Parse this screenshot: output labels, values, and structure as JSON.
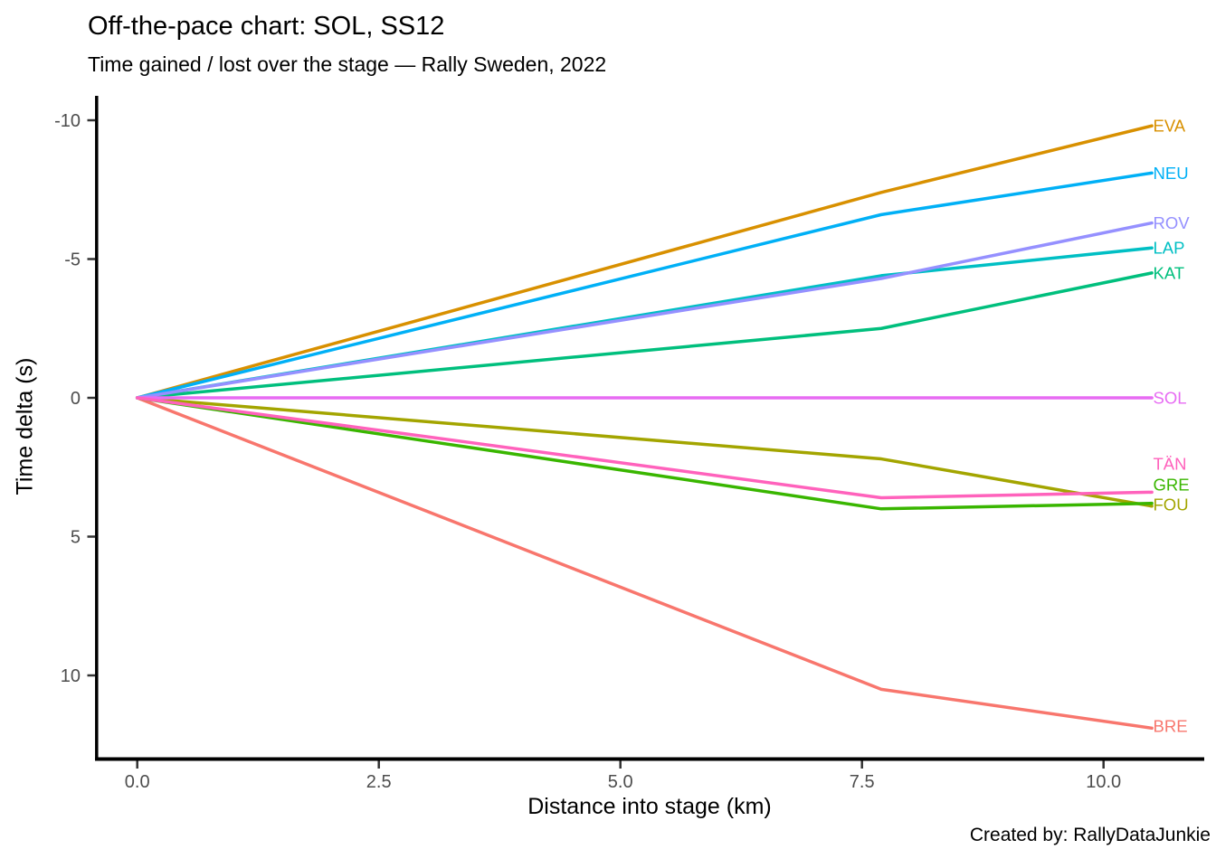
{
  "title": "Off-the-pace chart: SOL, SS12",
  "subtitle": "Time gained / lost over the stage — Rally Sweden, 2022",
  "caption": "Created by: RallyDataJunkie",
  "chart_data": {
    "type": "line",
    "title": "Off-the-pace chart: SOL, SS12",
    "subtitle": "Time gained / lost over the stage — Rally Sweden, 2022",
    "xlabel": "Distance into stage (km)",
    "ylabel": "Time delta (s)",
    "x": [
      0,
      7.7,
      10.5
    ],
    "xlim": [
      -0.53,
      11.03
    ],
    "ylim_top_to_bottom": [
      -10.9,
      13.0
    ],
    "y_axis_reversed": true,
    "grid": false,
    "legend": "direct-labels-right",
    "x_ticks": [
      0,
      2.5,
      5,
      7.5,
      10
    ],
    "x_tick_labels": [
      "0.0",
      "2.5",
      "5.0",
      "7.5",
      "10.0"
    ],
    "y_ticks": [
      -10,
      -5,
      0,
      5,
      10
    ],
    "y_tick_labels": [
      "-10",
      "-5",
      "0",
      "5",
      "10"
    ],
    "series": [
      {
        "name": "BRE",
        "color": "#F8766D",
        "values": [
          0,
          10.5,
          11.9
        ],
        "label_pos": 11.82
      },
      {
        "name": "EVA",
        "color": "#D89000",
        "values": [
          0,
          -7.4,
          -9.8
        ],
        "label_pos": -9.8
      },
      {
        "name": "FOU",
        "color": "#A3A500",
        "values": [
          0,
          2.2,
          3.9
        ],
        "label_pos": 3.85
      },
      {
        "name": "GRE",
        "color": "#39B600",
        "values": [
          0,
          4.0,
          3.8
        ],
        "label_pos": 3.13
      },
      {
        "name": "KAT",
        "color": "#00BF7D",
        "values": [
          0,
          -2.5,
          -4.5
        ],
        "label_pos": -4.5
      },
      {
        "name": "LAP",
        "color": "#00BFC4",
        "values": [
          0,
          -4.4,
          -5.4
        ],
        "label_pos": -5.4
      },
      {
        "name": "NEU",
        "color": "#00B0F6",
        "values": [
          0,
          -6.6,
          -8.1
        ],
        "label_pos": -8.1
      },
      {
        "name": "ROV",
        "color": "#9590FF",
        "values": [
          0,
          -4.3,
          -6.3
        ],
        "label_pos": -6.3
      },
      {
        "name": "SOL",
        "color": "#E76BF3",
        "values": [
          0,
          0,
          0
        ],
        "label_pos": 0
      },
      {
        "name": "TÄN",
        "color": "#FF62BC",
        "values": [
          0,
          3.6,
          3.4
        ],
        "label_pos": 2.38
      }
    ],
    "axis_color": "#000000",
    "tick_label_color": "#4d4d4d"
  }
}
